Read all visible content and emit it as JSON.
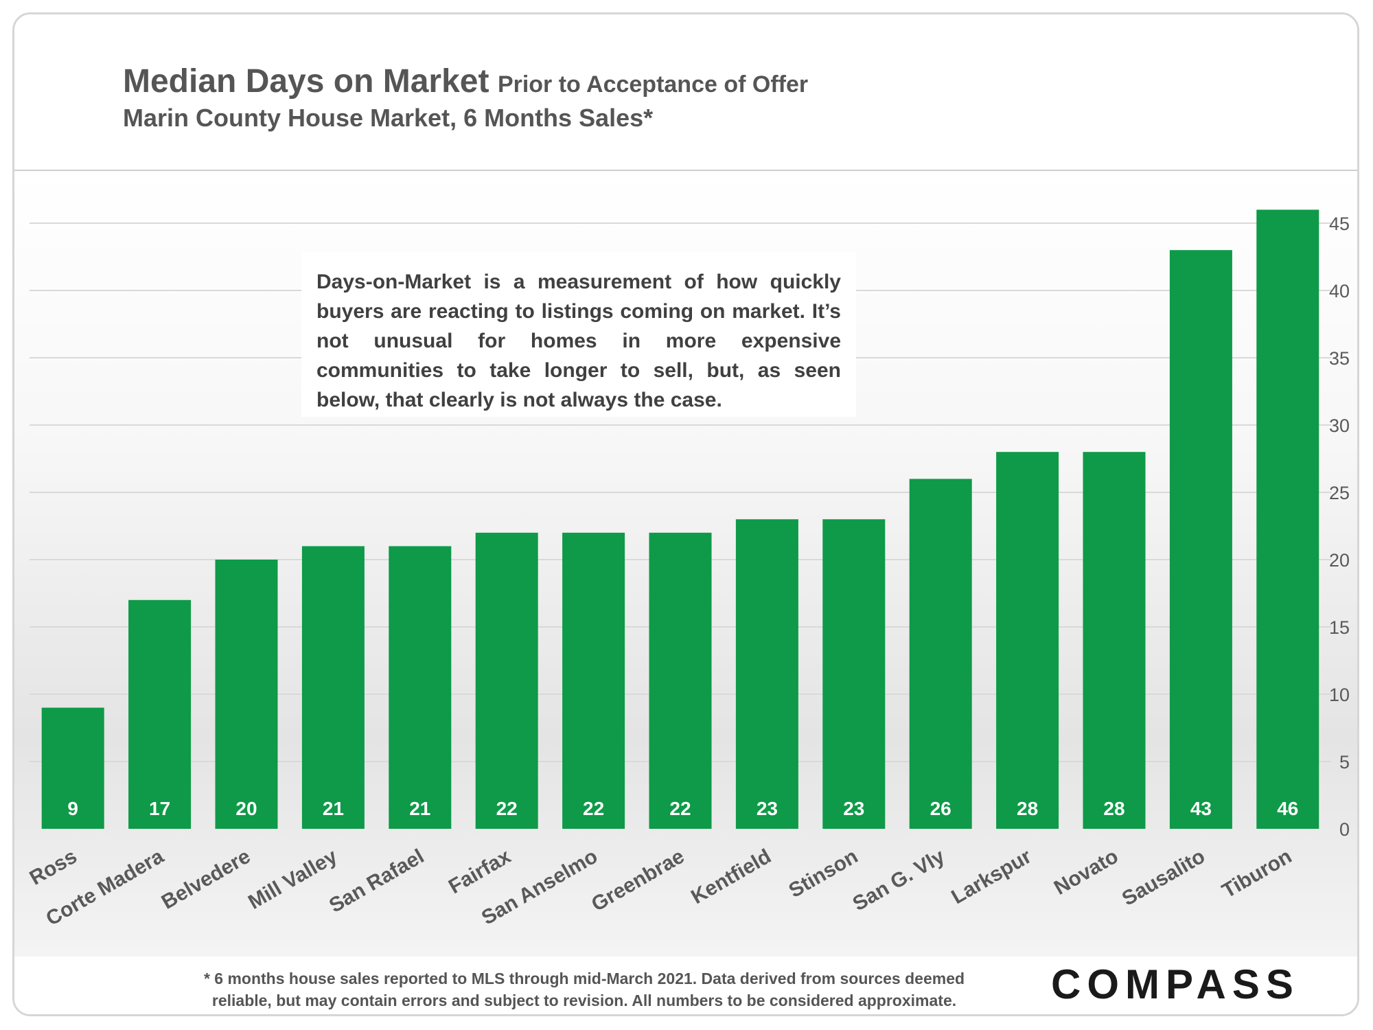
{
  "header": {
    "title": "Median Days on Market",
    "title_suffix": "Prior to Acceptance of Offer",
    "subtitle": "Marin County House Market, 6 Months Sales*"
  },
  "callout": {
    "text": "Days-on-Market is a measurement of how quickly buyers are reacting to listings coming on market. It’s not unusual for homes in more expensive communities to take longer to sell, but, as seen below, that clearly is not always the case."
  },
  "footer": {
    "footnote_line1": "* 6 months house sales reported to MLS through mid-March 2021. Data derived from sources deemed",
    "footnote_line2": "reliable, but may contain errors and subject to revision. All numbers to be considered approximate.",
    "brand": "COMPASS"
  },
  "colors": {
    "bar": "#0e9a48",
    "bar_label": "#ffffff",
    "grid": "#d9d9d9",
    "axis_text": "#595959",
    "category_text": "#595959"
  },
  "chart_data": {
    "type": "bar",
    "categories": [
      "Ross",
      "Corte Madera",
      "Belvedere",
      "Mill Valley",
      "San Rafael",
      "Fairfax",
      "San Anselmo",
      "Greenbrae",
      "Kentfield",
      "Stinson",
      "San G. Vly",
      "Larkspur",
      "Novato",
      "Sausalito",
      "Tiburon"
    ],
    "values": [
      9,
      17,
      20,
      21,
      21,
      22,
      22,
      22,
      23,
      23,
      26,
      28,
      28,
      43,
      46
    ],
    "title": "Median Days on Market",
    "subtitle": "Prior to Acceptance of Offer",
    "xlabel": "",
    "ylabel": "",
    "ylim": [
      0,
      45
    ],
    "yticks": [
      0,
      5,
      10,
      15,
      20,
      25,
      30,
      35,
      40,
      45
    ],
    "y_axis_side": "right",
    "grid": true,
    "legend": "none",
    "data_labels": "inside-bottom"
  }
}
